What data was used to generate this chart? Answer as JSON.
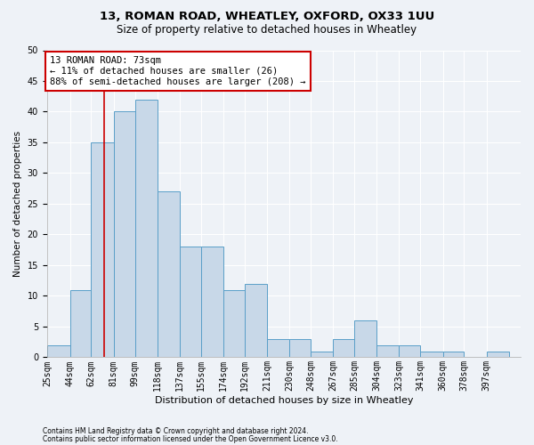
{
  "title1": "13, ROMAN ROAD, WHEATLEY, OXFORD, OX33 1UU",
  "title2": "Size of property relative to detached houses in Wheatley",
  "xlabel": "Distribution of detached houses by size in Wheatley",
  "ylabel": "Number of detached properties",
  "footer1": "Contains HM Land Registry data © Crown copyright and database right 2024.",
  "footer2": "Contains public sector information licensed under the Open Government Licence v3.0.",
  "bin_labels": [
    "25sqm",
    "44sqm",
    "62sqm",
    "81sqm",
    "99sqm",
    "118sqm",
    "137sqm",
    "155sqm",
    "174sqm",
    "192sqm",
    "211sqm",
    "230sqm",
    "248sqm",
    "267sqm",
    "285sqm",
    "304sqm",
    "323sqm",
    "341sqm",
    "360sqm",
    "378sqm",
    "397sqm"
  ],
  "bin_edges": [
    25,
    44,
    62,
    81,
    99,
    118,
    137,
    155,
    174,
    192,
    211,
    230,
    248,
    267,
    285,
    304,
    323,
    341,
    360,
    378,
    397,
    416
  ],
  "values": [
    2,
    11,
    35,
    40,
    42,
    27,
    18,
    18,
    11,
    12,
    3,
    3,
    1,
    3,
    6,
    2,
    2,
    1,
    1,
    0,
    1
  ],
  "bar_color": "#c8d8e8",
  "bar_edge_color": "#5a9fc8",
  "bar_linewidth": 0.7,
  "vline_x": 73,
  "vline_color": "#cc0000",
  "annotation_line1": "13 ROMAN ROAD: 73sqm",
  "annotation_line2": "← 11% of detached houses are smaller (26)",
  "annotation_line3": "88% of semi-detached houses are larger (208) →",
  "annotation_box_color": "#ffffff",
  "annotation_box_edgecolor": "#cc0000",
  "annotation_fontsize": 7.5,
  "ylim": [
    0,
    50
  ],
  "yticks": [
    0,
    5,
    10,
    15,
    20,
    25,
    30,
    35,
    40,
    45,
    50
  ],
  "bg_color": "#eef2f7",
  "grid_color": "#ffffff",
  "title1_fontsize": 9.5,
  "title2_fontsize": 8.5,
  "xlabel_fontsize": 8,
  "ylabel_fontsize": 7.5,
  "tick_fontsize": 7,
  "footer_fontsize": 5.5
}
